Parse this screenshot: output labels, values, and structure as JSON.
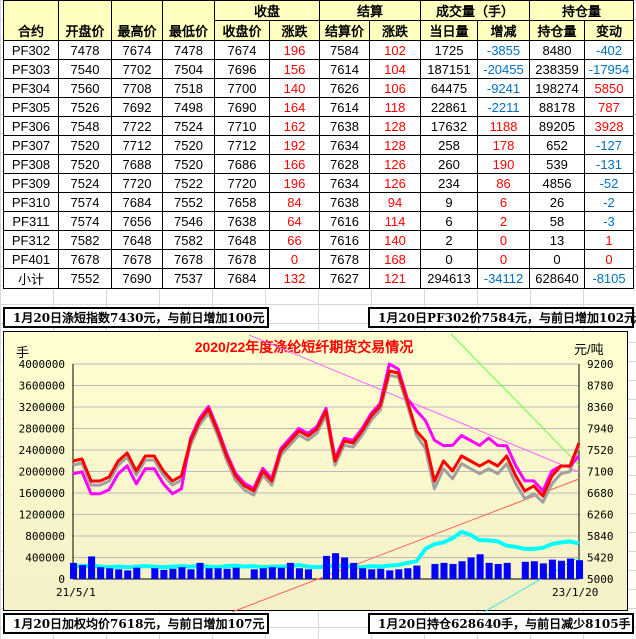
{
  "table": {
    "group_headers": {
      "close": "收盘",
      "settle": "结算",
      "volume": "成交量（手）",
      "oi": "持仓量"
    },
    "columns": [
      "合约",
      "开盘价",
      "最高价",
      "最低价",
      "收盘价",
      "涨跌",
      "结算价",
      "涨跌",
      "当日量",
      "增减",
      "持仓量",
      "变动"
    ],
    "rows": [
      [
        "PF302",
        "7478",
        "7674",
        "7478",
        "7674",
        "196",
        "7584",
        "102",
        "1725",
        "-3855",
        "8480",
        "-402"
      ],
      [
        "PF303",
        "7540",
        "7702",
        "7504",
        "7696",
        "156",
        "7614",
        "104",
        "187151",
        "-20455",
        "238359",
        "-17954"
      ],
      [
        "PF304",
        "7560",
        "7708",
        "7518",
        "7700",
        "140",
        "7626",
        "106",
        "64475",
        "-9241",
        "198274",
        "5850"
      ],
      [
        "PF305",
        "7526",
        "7692",
        "7498",
        "7690",
        "164",
        "7614",
        "118",
        "22861",
        "-2211",
        "88178",
        "787"
      ],
      [
        "PF306",
        "7548",
        "7722",
        "7524",
        "7710",
        "162",
        "7638",
        "128",
        "17632",
        "1188",
        "89205",
        "3928"
      ],
      [
        "PF307",
        "7520",
        "7712",
        "7520",
        "7712",
        "192",
        "7634",
        "128",
        "258",
        "178",
        "652",
        "-127"
      ],
      [
        "PF308",
        "7520",
        "7688",
        "7520",
        "7686",
        "166",
        "7628",
        "126",
        "260",
        "190",
        "539",
        "-131"
      ],
      [
        "PF309",
        "7524",
        "7720",
        "7522",
        "7720",
        "196",
        "7634",
        "126",
        "234",
        "86",
        "4856",
        "-52"
      ],
      [
        "PF310",
        "7574",
        "7684",
        "7552",
        "7658",
        "84",
        "7638",
        "94",
        "9",
        "6",
        "26",
        "-2"
      ],
      [
        "PF311",
        "7574",
        "7656",
        "7546",
        "7638",
        "64",
        "7616",
        "114",
        "6",
        "2",
        "58",
        "-3"
      ],
      [
        "PF312",
        "7582",
        "7648",
        "7582",
        "7648",
        "66",
        "7616",
        "140",
        "2",
        "0",
        "13",
        "1"
      ],
      [
        "PF401",
        "7678",
        "7678",
        "7678",
        "7678",
        "0",
        "7678",
        "168",
        "0",
        "0",
        "0",
        "0"
      ],
      [
        "小计",
        "7552",
        "7690",
        "7537",
        "7684",
        "132",
        "7627",
        "121",
        "294613",
        "-34112",
        "628640",
        "-8105"
      ]
    ]
  },
  "captions": {
    "top_left": "1月20日涤短指数7430元，与前日增加100元",
    "top_right": "1月20日PF302价7584元，与前日增加102元",
    "bottom_left": "1月20日加权均价7618元，与前日增加107元",
    "bottom_right": "1月20日持仓628640手，与前日减少8105手"
  },
  "colors": {
    "up": "#ff0000",
    "down": "#0070c0",
    "header_bg": "#ffffc0"
  },
  "chart_data": {
    "type": "line",
    "title": "2020/22年度涤纶短纤期货交易情况",
    "ylabel_left": "手",
    "ylabel_right": "元/吨",
    "ylim_left": [
      0,
      4000000
    ],
    "ylim_right": [
      5000,
      9200
    ],
    "yticks_left": [
      "0",
      "400000",
      "800000",
      "1200000",
      "1600000",
      "2000000",
      "2400000",
      "2800000",
      "3200000",
      "3600000",
      "4000000"
    ],
    "yticks_right": [
      "5000",
      "5420",
      "5840",
      "6260",
      "6680",
      "7100",
      "7520",
      "7940",
      "8360",
      "8780",
      "9200"
    ],
    "x_start": "21/5/1",
    "x_end": "23/1/20",
    "grid": true,
    "series": [
      {
        "axis": "right",
        "color": "#a0a0a0",
        "values": [
          7225,
          7264,
          6834,
          6834,
          6912,
          7225,
          7381,
          7030,
          7323,
          7323,
          7030,
          6834,
          6932,
          7616,
          8007,
          8241,
          7811,
          7323,
          6932,
          6737,
          6639,
          7030,
          6834,
          7420,
          7616,
          7811,
          7714,
          7850,
          8202,
          7225,
          7616,
          7577,
          7811,
          8104,
          8300,
          8983,
          8944,
          8397,
          7811,
          7546,
          6764,
          7155,
          6960,
          7253,
          7155,
          7057,
          7155,
          7057,
          7253,
          6862,
          6569,
          6667,
          6500,
          6862,
          7057,
          7100,
          7600
        ]
      },
      {
        "axis": "right",
        "color": "#ff00ff",
        "values": [
          7055,
          7094,
          6664,
          6664,
          6742,
          7055,
          7211,
          6860,
          7153,
          7153,
          6860,
          6664,
          6762,
          7746,
          8137,
          8371,
          7941,
          7453,
          7062,
          6867,
          6769,
          7160,
          6964,
          7550,
          7746,
          7941,
          7844,
          7980,
          8332,
          7355,
          7746,
          7707,
          7941,
          8234,
          8430,
          9200,
          9100,
          8527,
          8290,
          8096,
          7714,
          7605,
          7610,
          7803,
          7705,
          7607,
          7755,
          7607,
          7603,
          7212,
          6919,
          6917,
          6721,
          7112,
          7207,
          7207,
          7400
        ]
      },
      {
        "axis": "right",
        "color": "#ff0000",
        "values": [
          7305,
          7344,
          6914,
          6914,
          6992,
          7305,
          7461,
          7110,
          7403,
          7403,
          7110,
          6914,
          7012,
          7696,
          8087,
          8321,
          7891,
          7403,
          7012,
          6817,
          6719,
          7110,
          6914,
          7500,
          7696,
          7891,
          7794,
          7930,
          8282,
          7305,
          7696,
          7657,
          7891,
          8184,
          8380,
          9063,
          9024,
          8477,
          7891,
          7696,
          6914,
          7305,
          7110,
          7403,
          7305,
          7207,
          7305,
          7207,
          7403,
          7012,
          6719,
          6817,
          6621,
          7012,
          7207,
          7207,
          7657
        ]
      },
      {
        "axis": "left",
        "color": "#00ffff",
        "values": [
          230000,
          240000,
          250000,
          230000,
          220000,
          230000,
          220000,
          230000,
          240000,
          230000,
          220000,
          230000,
          240000,
          230000,
          240000,
          230000,
          220000,
          240000,
          250000,
          230000,
          240000,
          220000,
          230000,
          230000,
          240000,
          260000,
          230000,
          220000,
          230000,
          250000,
          240000,
          230000,
          220000,
          240000,
          230000,
          250000,
          260000,
          300000,
          330000,
          560000,
          650000,
          680000,
          760000,
          880000,
          820000,
          720000,
          720000,
          700000,
          620000,
          600000,
          560000,
          560000,
          580000,
          650000,
          680000,
          700000,
          660000
        ]
      },
      {
        "axis": "left",
        "type": "bar",
        "color": "#0000ff",
        "values": [
          300000,
          260000,
          420000,
          220000,
          200000,
          180000,
          160000,
          210000,
          0,
          200000,
          170000,
          190000,
          220000,
          180000,
          300000,
          200000,
          200000,
          190000,
          210000,
          0,
          180000,
          200000,
          220000,
          210000,
          300000,
          200000,
          180000,
          0,
          430000,
          480000,
          400000,
          300000,
          200000,
          180000,
          190000,
          160000,
          180000,
          200000,
          250000,
          0,
          280000,
          300000,
          280000,
          330000,
          400000,
          460000,
          300000,
          280000,
          300000,
          0,
          320000,
          330000,
          290000,
          360000,
          340000,
          380000,
          350000
        ]
      }
    ]
  }
}
